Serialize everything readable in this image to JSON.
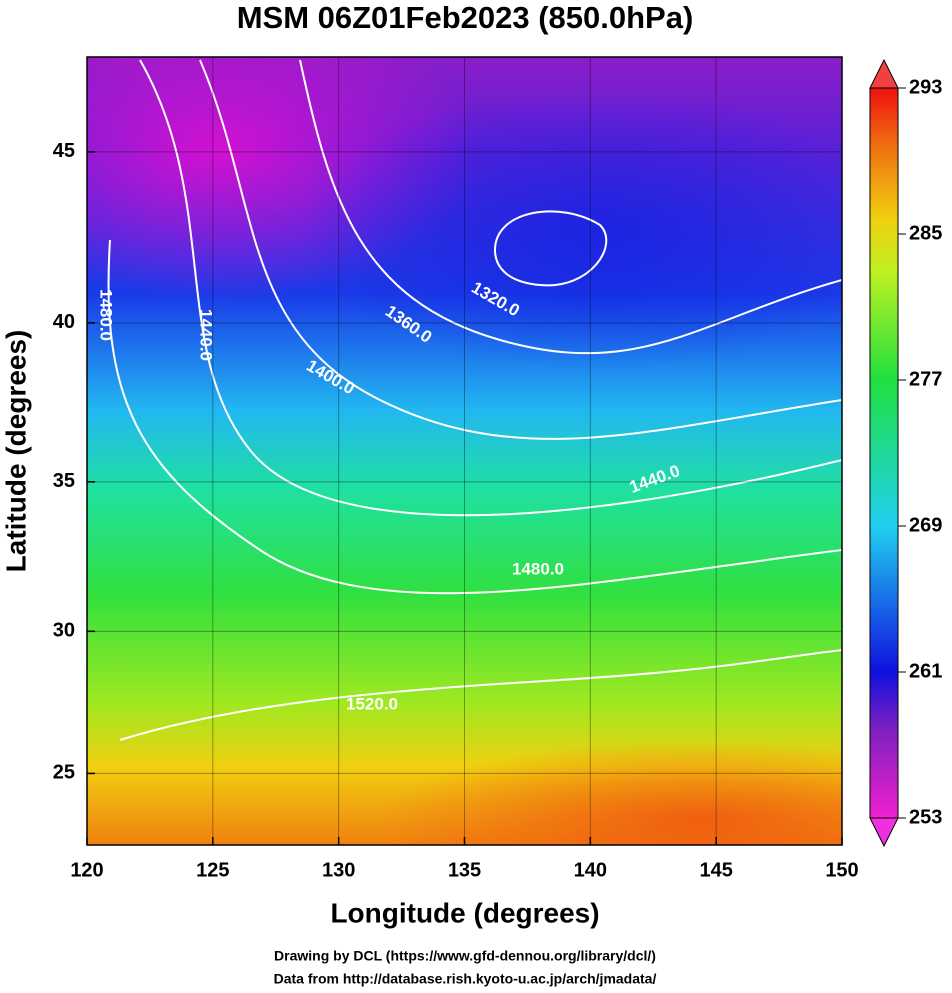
{
  "title": "MSM 06Z01Feb2023 (850.0hPa)",
  "x_axis": {
    "label": "Longitude (degrees)",
    "lim": [
      120,
      150
    ],
    "ticks": [
      120,
      125,
      130,
      135,
      140,
      145,
      150
    ]
  },
  "y_axis": {
    "label": "Latitude  (degrees)",
    "lim": [
      22.4,
      47.6
    ],
    "ticks": [
      25,
      30,
      35,
      40,
      45
    ]
  },
  "colorbar": {
    "lim": [
      253,
      293
    ],
    "ticks": [
      253,
      261,
      269,
      277,
      285,
      293
    ]
  },
  "contour_labels": [
    "1320.0",
    "1360.0",
    "1400.0",
    "1440.0",
    "1440.0",
    "1480.0",
    "1480.0",
    "1520.0"
  ],
  "credits": [
    "Drawing by DCL (https://www.gfd-dennou.org/library/dcl/)",
    "Data from http://database.rish.kyoto-u.ac.jp/arch/jmadata/"
  ]
}
